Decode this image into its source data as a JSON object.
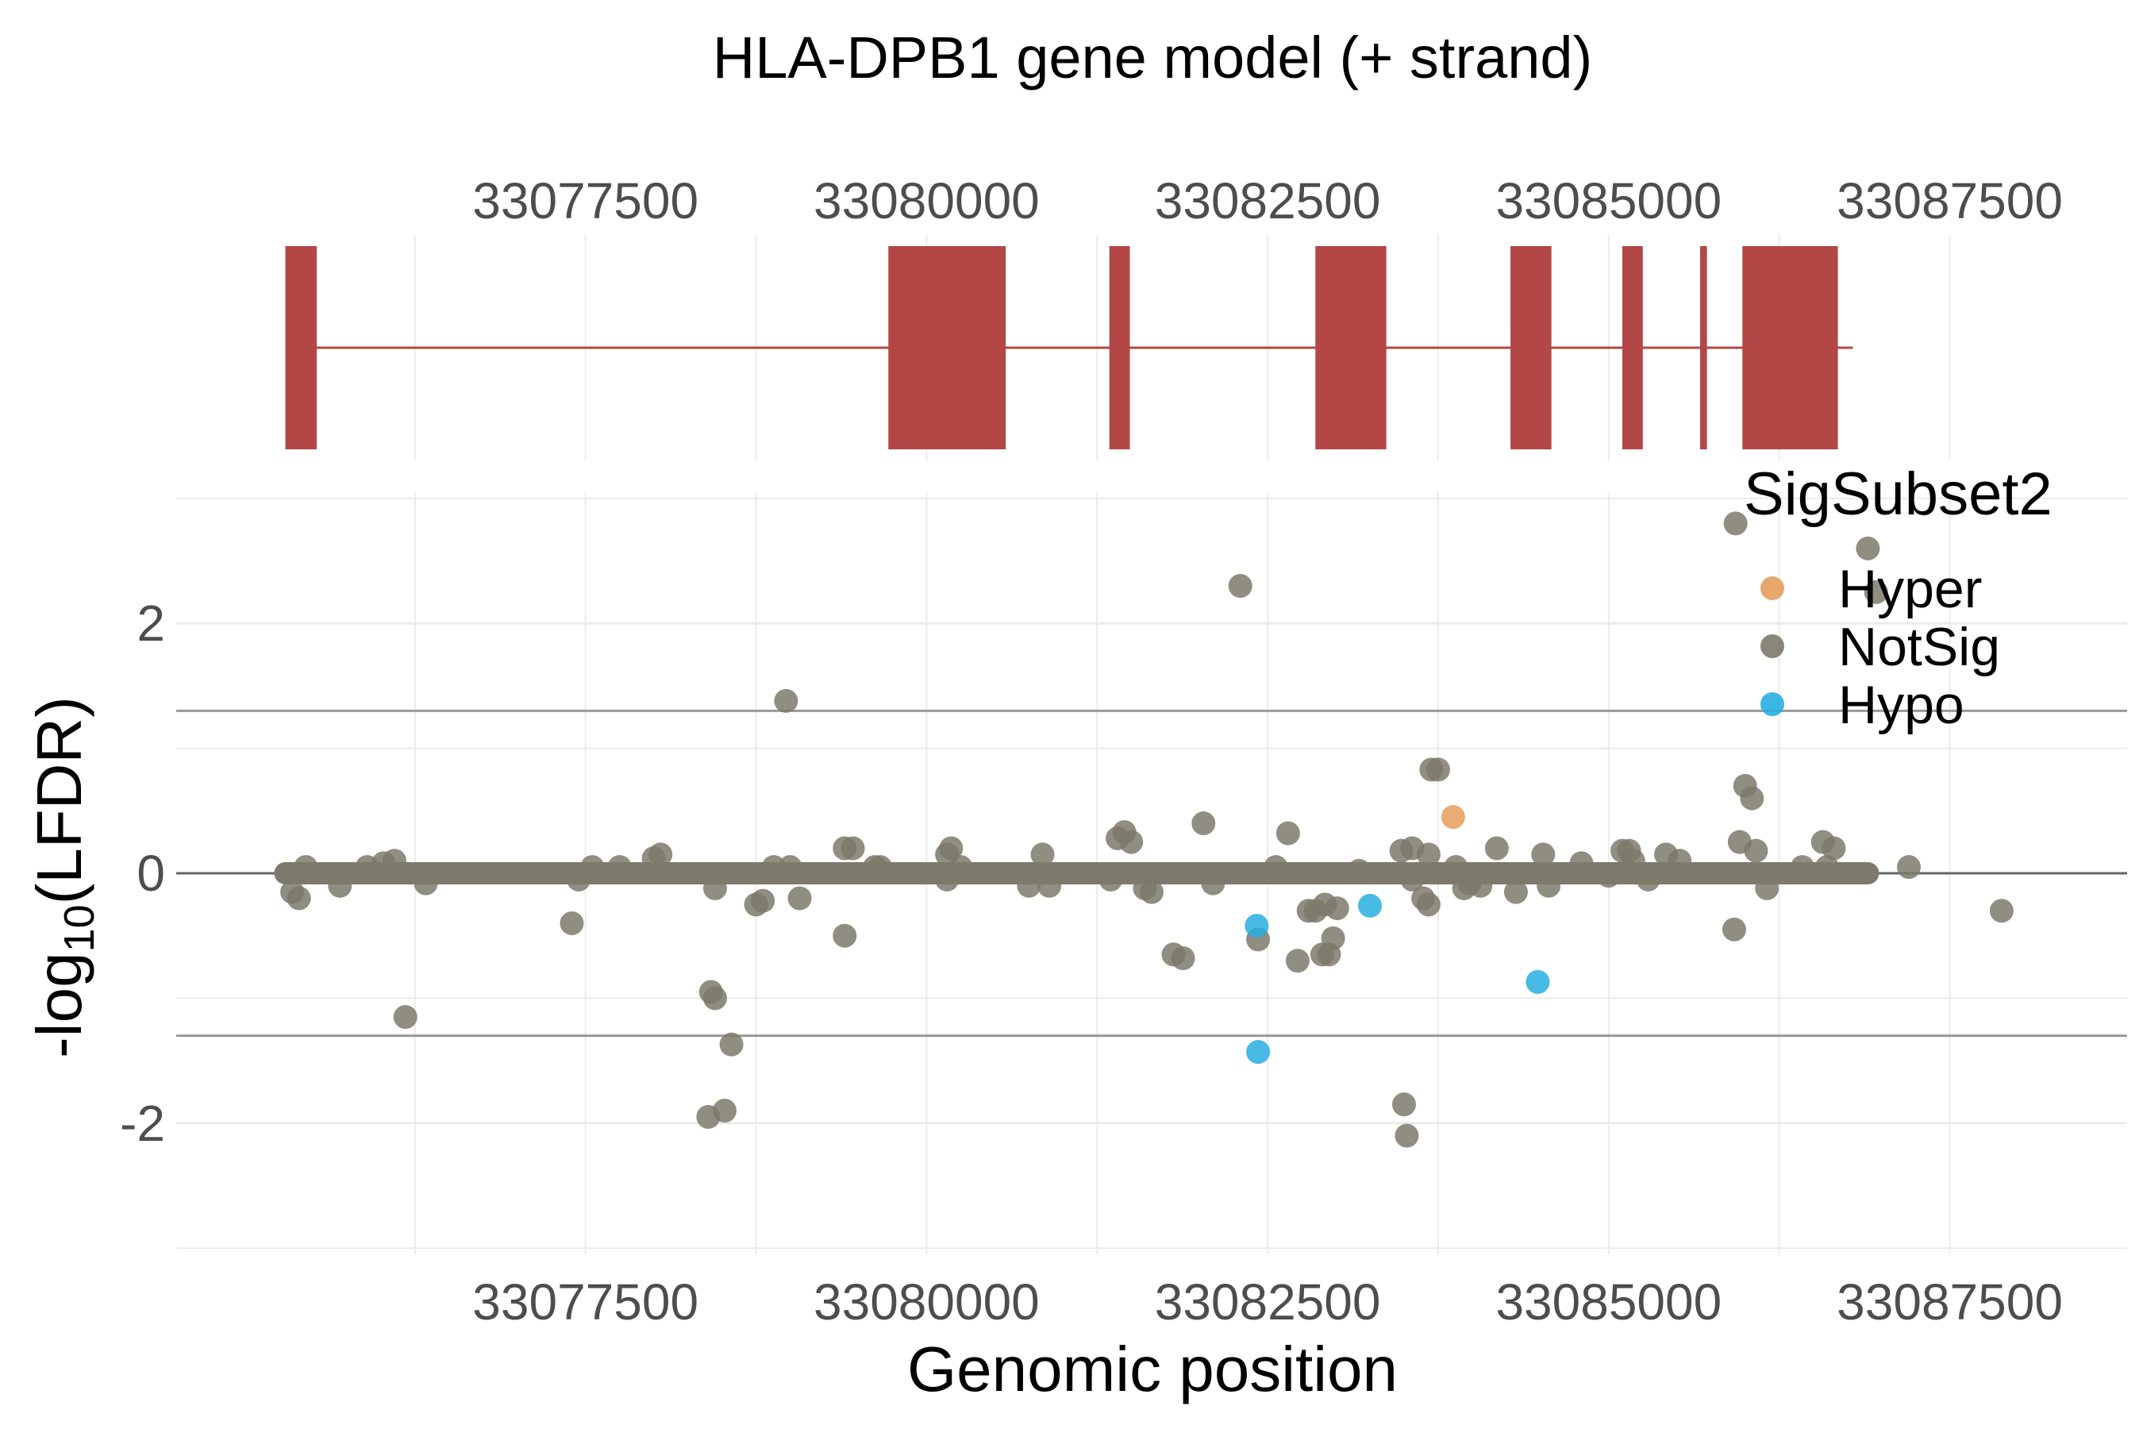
{
  "chart_data": {
    "type": "scatter",
    "title": "HLA-DPB1 gene model (+ strand)",
    "gene_track": {
      "xlim": [
        33075200,
        33087900
      ],
      "intron_span": [
        33075530,
        33086790
      ],
      "exons": [
        [
          33075300,
          33075530
        ],
        [
          33079720,
          33080580
        ],
        [
          33081340,
          33081490
        ],
        [
          33082850,
          33083370
        ],
        [
          33084280,
          33084580
        ],
        [
          33085100,
          33085250
        ],
        [
          33085670,
          33085720
        ],
        [
          33085980,
          33086680
        ]
      ],
      "color": "#B24745",
      "tick_labels": [
        "33077500",
        "33080000",
        "33082500",
        "33085000",
        "33087500"
      ],
      "ticks": [
        33077500,
        33080000,
        33082500,
        33085000,
        33087500
      ]
    },
    "plot": {
      "xlabel": "Genomic position",
      "ylabel_main": "-log",
      "ylabel_sub": "10",
      "ylabel_tail": "(LFDR)",
      "xlim": [
        33074500,
        33088800
      ],
      "ylim": [
        -3.05,
        3.05
      ],
      "x_ticks": [
        33076250,
        33077500,
        33078750,
        33080000,
        33081250,
        33082500,
        33083750,
        33085000,
        33086250,
        33087500
      ],
      "x_tick_labels": [
        "33077500",
        "33080000",
        "33082500",
        "33085000",
        "33087500"
      ],
      "x_tick_label_values": [
        33077500,
        33080000,
        33082500,
        33085000,
        33087500
      ],
      "y_ticks": [
        2,
        0,
        -2
      ],
      "y_tick_labels": [
        "2",
        "0",
        "-2"
      ],
      "y_minor_ticks": [
        -3,
        -1,
        1,
        3
      ],
      "hlines": [
        1.3,
        -1.3
      ],
      "grid": true
    },
    "legend": {
      "title": "SigSubset2",
      "position": "top-right",
      "entries": [
        {
          "label": "Hyper",
          "color": "#E59E5C"
        },
        {
          "label": "NotSig",
          "color": "#7D796B"
        },
        {
          "label": "Hypo",
          "color": "#27AEE0"
        }
      ]
    },
    "baseline_range": [
      33075300,
      33086900
    ],
    "series": [
      {
        "name": "NotSig",
        "color": "#7D796B",
        "points": [
          [
            33075350,
            -0.15
          ],
          [
            33075400,
            -0.2
          ],
          [
            33075450,
            0.05
          ],
          [
            33075700,
            -0.1
          ],
          [
            33075900,
            0.05
          ],
          [
            33076020,
            0.08
          ],
          [
            33076100,
            0.1
          ],
          [
            33076180,
            -1.15
          ],
          [
            33076330,
            -0.08
          ],
          [
            33077400,
            -0.4
          ],
          [
            33077450,
            -0.05
          ],
          [
            33077550,
            0.05
          ],
          [
            33077750,
            0.05
          ],
          [
            33078000,
            0.12
          ],
          [
            33078050,
            0.15
          ],
          [
            33078450,
            -0.12
          ],
          [
            33078420,
            -0.95
          ],
          [
            33078450,
            -1.0
          ],
          [
            33078400,
            -1.95
          ],
          [
            33078520,
            -1.9
          ],
          [
            33078570,
            -1.37
          ],
          [
            33078750,
            -0.25
          ],
          [
            33078800,
            -0.22
          ],
          [
            33078880,
            0.05
          ],
          [
            33078970,
            1.38
          ],
          [
            33079000,
            0.05
          ],
          [
            33079070,
            -0.2
          ],
          [
            33079400,
            -0.5
          ],
          [
            33079400,
            0.2
          ],
          [
            33079460,
            0.2
          ],
          [
            33079620,
            0.05
          ],
          [
            33079660,
            0.05
          ],
          [
            33080150,
            0.15
          ],
          [
            33080180,
            0.2
          ],
          [
            33080150,
            -0.05
          ],
          [
            33080250,
            0.05
          ],
          [
            33080750,
            -0.1
          ],
          [
            33080850,
            0.15
          ],
          [
            33080900,
            -0.1
          ],
          [
            33081400,
            0.28
          ],
          [
            33081450,
            0.33
          ],
          [
            33081500,
            0.25
          ],
          [
            33081350,
            -0.05
          ],
          [
            33081600,
            -0.12
          ],
          [
            33081650,
            -0.15
          ],
          [
            33082030,
            0.4
          ],
          [
            33081810,
            -0.65
          ],
          [
            33081880,
            -0.68
          ],
          [
            33082100,
            -0.08
          ],
          [
            33082300,
            2.3
          ],
          [
            33082430,
            -0.53
          ],
          [
            33082560,
            0.05
          ],
          [
            33082650,
            0.32
          ],
          [
            33082720,
            -0.7
          ],
          [
            33082800,
            -0.3
          ],
          [
            33082850,
            -0.3
          ],
          [
            33082920,
            -0.25
          ],
          [
            33082900,
            -0.65
          ],
          [
            33082950,
            -0.65
          ],
          [
            33082980,
            -0.52
          ],
          [
            33083010,
            -0.28
          ],
          [
            33083170,
            0.02
          ],
          [
            33083480,
            0.18
          ],
          [
            33083560,
            0.2
          ],
          [
            33083500,
            -1.85
          ],
          [
            33083520,
            -2.1
          ],
          [
            33083560,
            -0.05
          ],
          [
            33083640,
            -0.2
          ],
          [
            33083680,
            -0.25
          ],
          [
            33083680,
            0.15
          ],
          [
            33083700,
            0.83
          ],
          [
            33083750,
            0.83
          ],
          [
            33083880,
            0.05
          ],
          [
            33083940,
            -0.12
          ],
          [
            33083980,
            -0.08
          ],
          [
            33084060,
            -0.1
          ],
          [
            33084180,
            0.2
          ],
          [
            33084320,
            -0.15
          ],
          [
            33084520,
            0.15
          ],
          [
            33084560,
            -0.1
          ],
          [
            33084800,
            0.08
          ],
          [
            33085000,
            -0.02
          ],
          [
            33085100,
            0.18
          ],
          [
            33085150,
            0.18
          ],
          [
            33085180,
            0.1
          ],
          [
            33085290,
            -0.05
          ],
          [
            33085420,
            0.15
          ],
          [
            33085520,
            0.1
          ],
          [
            33085930,
            2.8
          ],
          [
            33085920,
            -0.45
          ],
          [
            33085960,
            0.25
          ],
          [
            33086000,
            0.7
          ],
          [
            33086050,
            0.6
          ],
          [
            33086080,
            0.18
          ],
          [
            33086160,
            -0.12
          ],
          [
            33086420,
            0.05
          ],
          [
            33086570,
            0.25
          ],
          [
            33086650,
            0.2
          ],
          [
            33086600,
            0.05
          ],
          [
            33086900,
            2.6
          ],
          [
            33086960,
            2.25
          ],
          [
            33087200,
            0.05
          ],
          [
            33087880,
            -0.3
          ]
        ]
      },
      {
        "name": "Hyper",
        "color": "#E59E5C",
        "points": [
          [
            33083860,
            0.45
          ]
        ]
      },
      {
        "name": "Hypo",
        "color": "#27AEE0",
        "points": [
          [
            33082420,
            -0.42
          ],
          [
            33082430,
            -1.43
          ],
          [
            33083250,
            -0.26
          ],
          [
            33084480,
            -0.87
          ]
        ]
      }
    ]
  }
}
